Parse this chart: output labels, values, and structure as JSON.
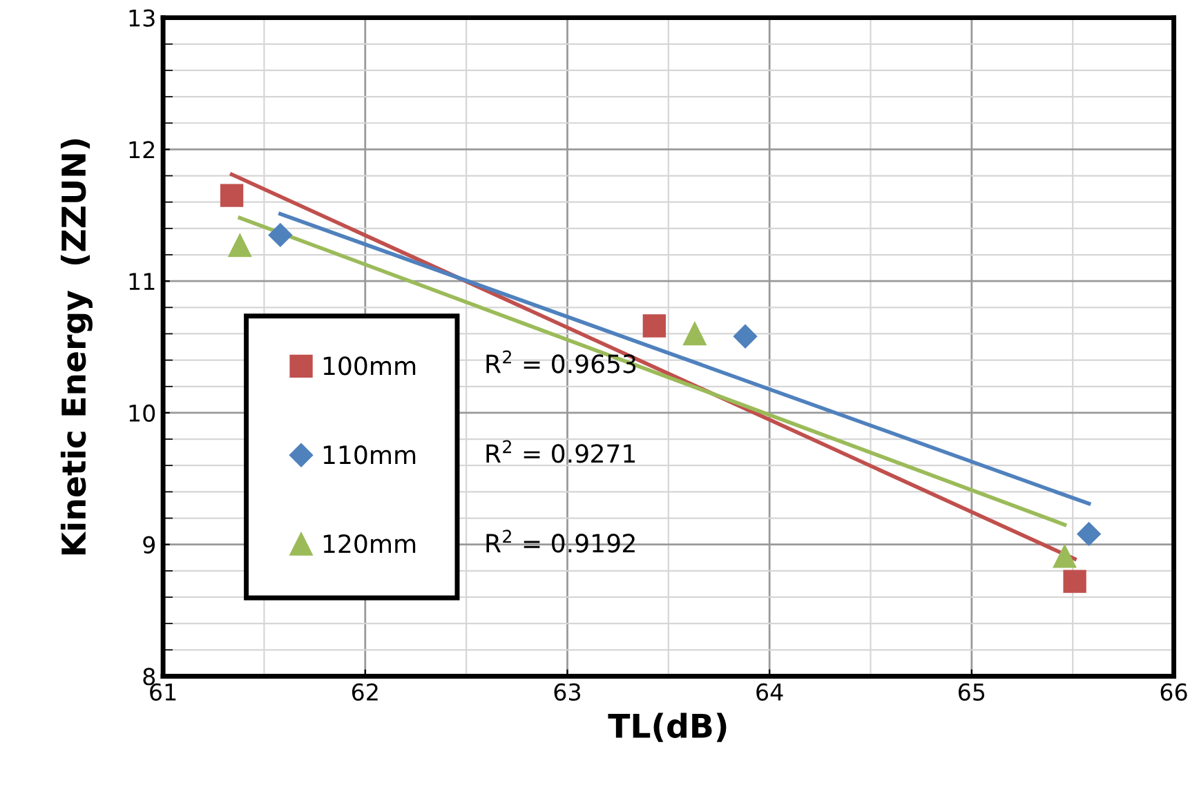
{
  "chart_data": {
    "type": "scatter",
    "xlabel": "TL(dB)",
    "ylabel": "Kinetic Energy  (ZZUN)",
    "xlim": [
      61,
      66
    ],
    "ylim": [
      8,
      13
    ],
    "xticks": [
      61,
      62,
      63,
      64,
      65,
      66
    ],
    "yticks": [
      8,
      9,
      10,
      11,
      12,
      13
    ],
    "grid": true,
    "legend": "bottom left",
    "series": [
      {
        "name": "100mm",
        "color": "#c0504d",
        "marker": "square",
        "x": [
          61.34,
          63.43,
          65.51
        ],
        "values": [
          11.65,
          10.66,
          8.72
        ]
      },
      {
        "name": "110mm",
        "color": "#4f81bd",
        "marker": "diamond",
        "x": [
          61.58,
          63.88,
          65.58
        ],
        "values": [
          11.35,
          10.58,
          9.08
        ]
      },
      {
        "name": "120mm",
        "color": "#9bbb59",
        "marker": "triangle",
        "x": [
          61.38,
          63.63,
          65.46
        ],
        "values": [
          11.27,
          10.6,
          8.91
        ]
      },
      {
        "type": "line",
        "color": "#c0504d",
        "x": [
          61.34,
          65.51
        ],
        "values": [
          11.81,
          8.89
        ]
      },
      {
        "type": "line",
        "color": "#4f81bd",
        "x": [
          61.58,
          65.58
        ],
        "values": [
          11.51,
          9.31
        ]
      },
      {
        "type": "line",
        "color": "#9bbb59",
        "x": [
          61.38,
          65.46
        ],
        "values": [
          11.48,
          9.15
        ]
      }
    ],
    "annotations": [
      "R$^{2}$ = 0.9653",
      "R$^{2}$ = 0.9271",
      "R$^{2}$ = 0.9192"
    ]
  }
}
